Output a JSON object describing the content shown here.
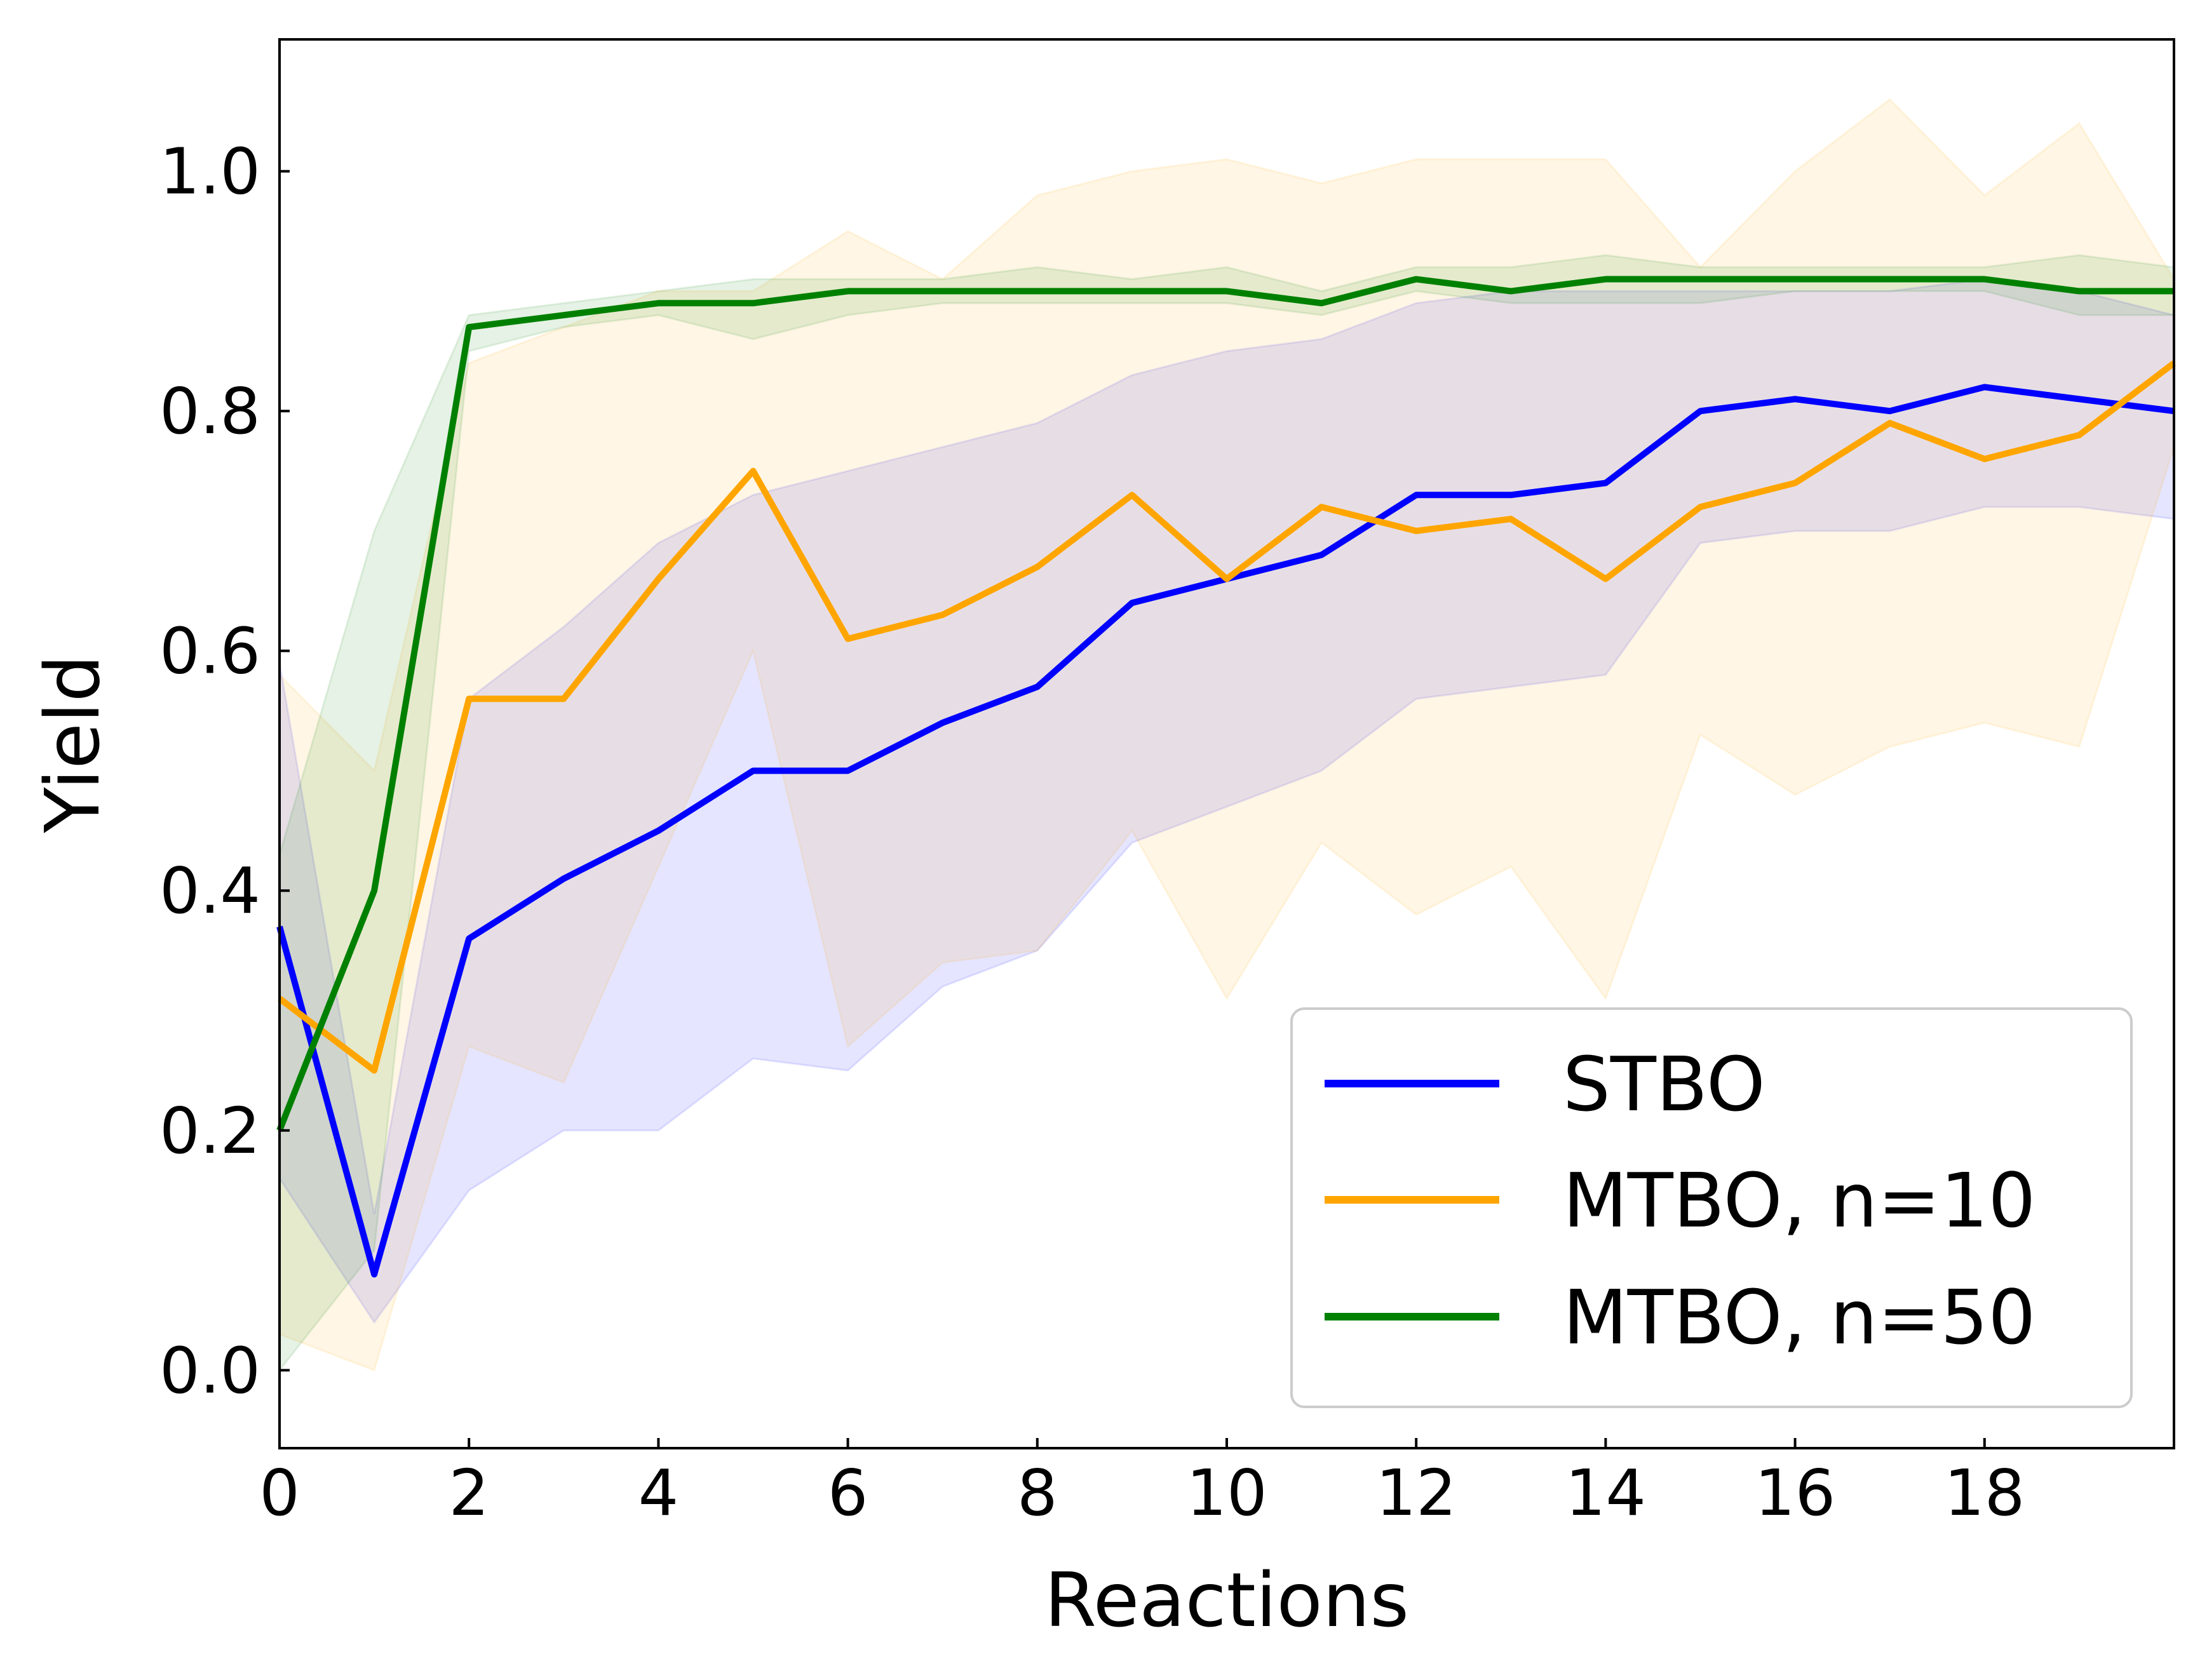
{
  "chart_data": {
    "type": "line",
    "xlabel": "Reactions",
    "ylabel": "Yield",
    "xlim": [
      0,
      20
    ],
    "ylim": [
      -0.065,
      1.11
    ],
    "xticks": [
      "0",
      "2",
      "4",
      "6",
      "8",
      "10",
      "12",
      "14",
      "16",
      "18"
    ],
    "yticks": [
      "0.0",
      "0.2",
      "0.4",
      "0.6",
      "0.8",
      "1.0"
    ],
    "legend_position": "lower-right",
    "grid": false,
    "x": [
      0,
      1,
      2,
      3,
      4,
      5,
      6,
      7,
      8,
      9,
      10,
      11,
      12,
      13,
      14,
      15,
      16,
      17,
      18,
      19,
      20
    ],
    "series": [
      {
        "name": "STBO",
        "color": "#0000ff",
        "values": [
          0.37,
          0.08,
          0.36,
          0.41,
          0.45,
          0.5,
          0.5,
          0.54,
          0.57,
          0.64,
          0.66,
          0.68,
          0.73,
          0.73,
          0.74,
          0.8,
          0.81,
          0.8,
          0.82,
          0.81,
          0.8
        ],
        "lower": [
          0.16,
          0.04,
          0.15,
          0.2,
          0.2,
          0.26,
          0.25,
          0.32,
          0.35,
          0.44,
          0.47,
          0.5,
          0.56,
          0.57,
          0.58,
          0.69,
          0.7,
          0.7,
          0.72,
          0.72,
          0.71
        ],
        "upper": [
          0.59,
          0.13,
          0.56,
          0.62,
          0.69,
          0.73,
          0.75,
          0.77,
          0.79,
          0.83,
          0.85,
          0.86,
          0.89,
          0.9,
          0.9,
          0.9,
          0.9,
          0.9,
          0.91,
          0.9,
          0.88
        ]
      },
      {
        "name": "MTBO, n=10",
        "color": "#ffa500",
        "values": [
          0.31,
          0.25,
          0.56,
          0.56,
          0.66,
          0.75,
          0.61,
          0.63,
          0.67,
          0.73,
          0.66,
          0.72,
          0.7,
          0.71,
          0.66,
          0.72,
          0.74,
          0.79,
          0.76,
          0.78,
          0.84
        ],
        "lower": [
          0.03,
          0.0,
          0.27,
          0.24,
          0.42,
          0.6,
          0.27,
          0.34,
          0.35,
          0.45,
          0.31,
          0.44,
          0.38,
          0.42,
          0.31,
          0.53,
          0.48,
          0.52,
          0.54,
          0.52,
          0.77
        ],
        "upper": [
          0.58,
          0.5,
          0.84,
          0.87,
          0.9,
          0.9,
          0.95,
          0.91,
          0.98,
          1.0,
          1.01,
          0.99,
          1.01,
          1.01,
          1.01,
          0.92,
          1.0,
          1.06,
          0.98,
          1.04,
          0.91
        ]
      },
      {
        "name": "MTBO, n=50",
        "color": "#008000",
        "values": [
          0.2,
          0.4,
          0.87,
          0.88,
          0.89,
          0.89,
          0.9,
          0.9,
          0.9,
          0.9,
          0.9,
          0.89,
          0.91,
          0.9,
          0.91,
          0.91,
          0.91,
          0.91,
          0.91,
          0.9,
          0.9
        ],
        "lower": [
          0.0,
          0.1,
          0.85,
          0.87,
          0.88,
          0.86,
          0.88,
          0.89,
          0.89,
          0.89,
          0.89,
          0.88,
          0.9,
          0.89,
          0.89,
          0.89,
          0.9,
          0.9,
          0.9,
          0.88,
          0.88
        ],
        "upper": [
          0.43,
          0.7,
          0.88,
          0.89,
          0.9,
          0.91,
          0.91,
          0.91,
          0.92,
          0.91,
          0.92,
          0.9,
          0.92,
          0.92,
          0.93,
          0.92,
          0.92,
          0.92,
          0.92,
          0.93,
          0.92
        ]
      }
    ]
  }
}
